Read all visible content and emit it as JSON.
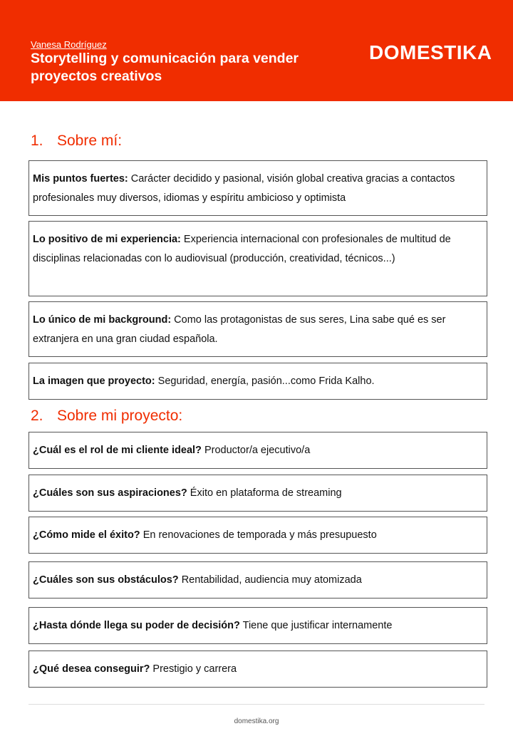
{
  "header": {
    "author": "Vanesa Rodríguez",
    "title": "Storytelling y comunicación para vender proyectos creativos",
    "logo": "DOMESTIKA",
    "color": "#f02d00"
  },
  "sections": [
    {
      "number": "1.",
      "title": "Sobre mí:",
      "items": [
        {
          "label": "Mis puntos fuertes:",
          "text": " Carácter decidido y pasional, visión global creativa gracias a contactos profesionales muy diversos, idiomas y espíritu ambicioso y optimista"
        },
        {
          "label": "Lo positivo de mi experiencia:",
          "text": " Experiencia internacional con profesionales de multitud de disciplinas relacionadas con lo audiovisual (producción, creatividad, técnicos...)"
        },
        {
          "label": "Lo único de mi background:",
          "text": " Como las protagonistas de sus seres, Lina sabe qué es ser extranjera en una gran ciudad española."
        },
        {
          "label": "La imagen que proyecto:",
          "text": " Seguridad, energía, pasión...como Frida Kalho."
        }
      ]
    },
    {
      "number": "2.",
      "title": "Sobre mi proyecto:",
      "items": [
        {
          "label": "¿Cuál es el rol de mi cliente ideal?",
          "text": " Productor/a ejecutivo/a"
        },
        {
          "label": "¿Cuáles son sus aspiraciones?",
          "text": " Éxito en plataforma de streaming"
        },
        {
          "label": "¿Cómo mide el éxito?",
          "text": " En renovaciones de temporada y más presupuesto"
        },
        {
          "label": "¿Cuáles son sus obstáculos?",
          "text": " Rentabilidad, audiencia muy atomizada"
        },
        {
          "label": "¿Hasta dónde llega su poder de decisión?",
          "text": " Tiene que justificar internamente"
        },
        {
          "label": "¿Qué desea conseguir?",
          "text": " Prestigio y carrera"
        }
      ]
    }
  ],
  "footer": {
    "url": "domestika.org"
  }
}
